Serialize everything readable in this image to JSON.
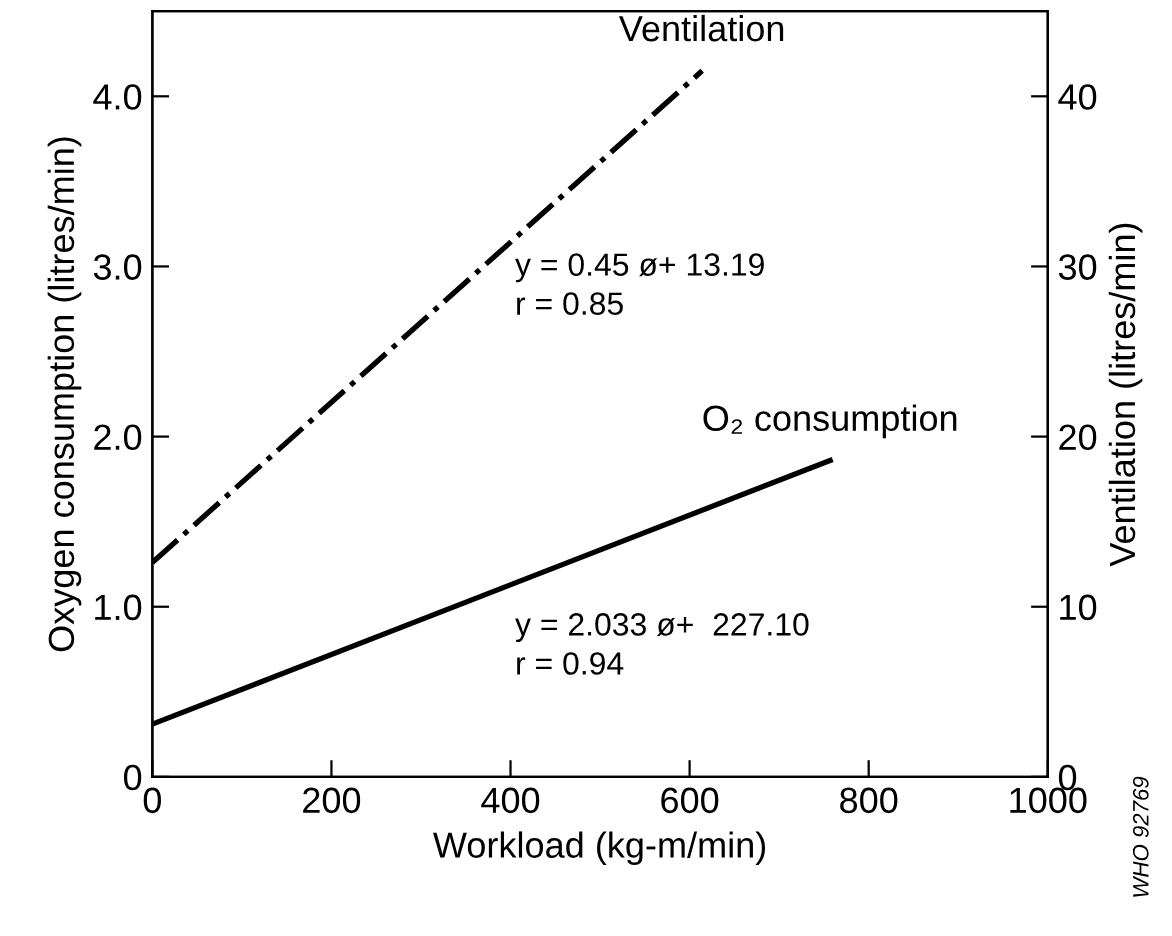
{
  "chart_data": {
    "type": "line",
    "xlabel": "Workload (kg-m/min)",
    "ylabel": "Oxygen consumption (litres/min)",
    "y2label": "Ventilation (litres/min)",
    "xlim": [
      0,
      1000
    ],
    "xticks": [
      0,
      200,
      400,
      600,
      800,
      1000
    ],
    "ylim": [
      0,
      4.5
    ],
    "yticks": [
      0,
      {
        "value": 1,
        "label": "1.0"
      },
      {
        "value": 2,
        "label": "2.0"
      },
      {
        "value": 3,
        "label": "3.0"
      },
      {
        "value": 4,
        "label": "4.0"
      }
    ],
    "y2lim": [
      0,
      45
    ],
    "y2ticks": [
      0,
      10,
      20,
      30,
      40
    ],
    "grid": false,
    "legend": false,
    "marker": "none",
    "series": [
      {
        "name": "Ventilation",
        "axis": "y2",
        "color": "#000000",
        "line_style": "dashed",
        "x": [
          0,
          614
        ],
        "values": [
          12.6,
          41.5
        ]
      },
      {
        "name": "O₂ consumption",
        "color": "#000000",
        "line_style": "solid",
        "x": [
          0,
          757
        ],
        "values": [
          0.31,
          1.86
        ]
      }
    ],
    "annotations": [
      "y = 0.45 ø+ 13.19\nr = 0.85",
      "y = 2.033 ø+  227.10\nr = 0.94",
      "WHO 92769"
    ]
  }
}
